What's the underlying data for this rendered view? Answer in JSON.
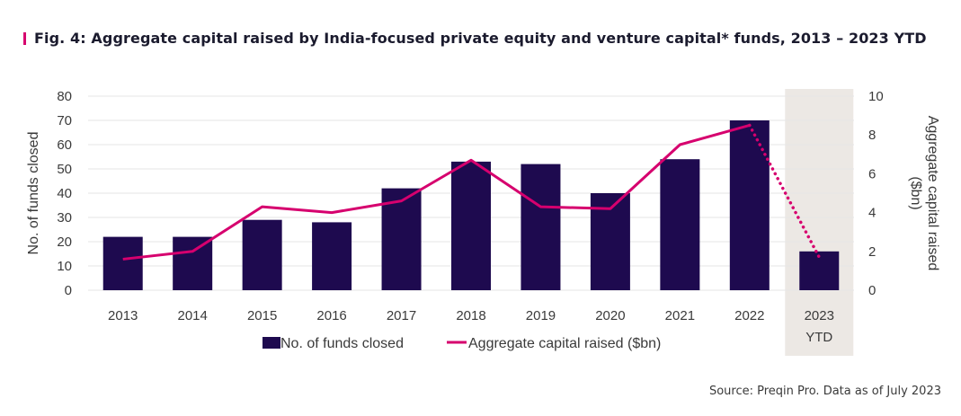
{
  "title": "Fig. 4: Aggregate capital raised by India-focused private equity and venture capital* funds, 2013 – 2023 YTD",
  "source": "Source: Preqin Pro. Data as of July 2023",
  "colors": {
    "bars": "#1e0a4f",
    "line": "#d6006e",
    "ytd_shade": "#ece8e4",
    "grid": "#e6e6e6",
    "title_accent": "#d6006e"
  },
  "chart_data": {
    "type": "bar",
    "categories": [
      "2013",
      "2014",
      "2015",
      "2016",
      "2017",
      "2018",
      "2019",
      "2020",
      "2021",
      "2022",
      "2023 YTD"
    ],
    "category_lines": [
      [
        "2013"
      ],
      [
        "2014"
      ],
      [
        "2015"
      ],
      [
        "2016"
      ],
      [
        "2017"
      ],
      [
        "2018"
      ],
      [
        "2019"
      ],
      [
        "2020"
      ],
      [
        "2021"
      ],
      [
        "2022"
      ],
      [
        "2023",
        "YTD"
      ]
    ],
    "series": [
      {
        "name": "No. of funds closed",
        "type": "bar",
        "axis": "left",
        "values": [
          22,
          22,
          29,
          28,
          42,
          53,
          52,
          40,
          54,
          70,
          16
        ]
      },
      {
        "name": "Aggregate capital raised ($bn)",
        "type": "line",
        "axis": "right",
        "values": [
          1.6,
          2.0,
          4.3,
          4.0,
          4.6,
          6.7,
          4.3,
          4.2,
          7.5,
          8.5,
          1.7
        ],
        "dotted_segment_from_category": "2022"
      }
    ],
    "ylabel": "No. of funds closed",
    "y2label": "Aggregate capital raised ($bn)",
    "ylim": [
      0,
      80
    ],
    "y2lim": [
      0,
      10
    ],
    "yticks": [
      0,
      10,
      20,
      30,
      40,
      50,
      60,
      70,
      80
    ],
    "y2ticks": [
      0,
      2,
      4,
      6,
      8,
      10
    ],
    "highlighted_category": "2023 YTD",
    "grid": true,
    "legend": "bottom-center"
  }
}
